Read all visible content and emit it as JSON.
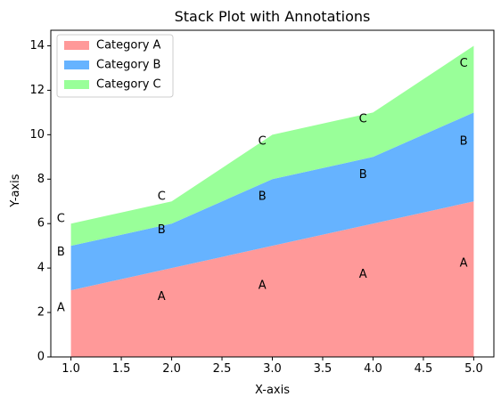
{
  "chart_data": {
    "type": "area",
    "stacked": true,
    "title": "Stack Plot with Annotations",
    "xlabel": "X-axis",
    "ylabel": "Y-axis",
    "x": [
      1,
      2,
      3,
      4,
      5
    ],
    "xlim": [
      0.8,
      5.2
    ],
    "ylim": [
      0,
      14.7
    ],
    "xticks": [
      "1.0",
      "1.5",
      "2.0",
      "2.5",
      "3.0",
      "3.5",
      "4.0",
      "4.5",
      "5.0"
    ],
    "yticks": [
      "0",
      "2",
      "4",
      "6",
      "8",
      "10",
      "12",
      "14"
    ],
    "grid": false,
    "legend_position": "top-left",
    "series": [
      {
        "name": "Category A",
        "values": [
          3,
          4,
          5,
          6,
          7
        ],
        "color": "#ff9999"
      },
      {
        "name": "Category B",
        "values": [
          2,
          2,
          3,
          3,
          4
        ],
        "color": "#66b3ff"
      },
      {
        "name": "Category C",
        "values": [
          1,
          1,
          2,
          2,
          3
        ],
        "color": "#99ff99"
      }
    ],
    "annotations": [
      {
        "text": "A",
        "x": 0.9,
        "y": 2.2
      },
      {
        "text": "A",
        "x": 1.9,
        "y": 2.7
      },
      {
        "text": "A",
        "x": 2.9,
        "y": 3.2
      },
      {
        "text": "A",
        "x": 3.9,
        "y": 3.7
      },
      {
        "text": "A",
        "x": 4.9,
        "y": 4.2
      },
      {
        "text": "B",
        "x": 0.9,
        "y": 4.7
      },
      {
        "text": "B",
        "x": 1.9,
        "y": 5.7
      },
      {
        "text": "B",
        "x": 2.9,
        "y": 7.2
      },
      {
        "text": "B",
        "x": 3.9,
        "y": 8.2
      },
      {
        "text": "B",
        "x": 4.9,
        "y": 9.7
      },
      {
        "text": "C",
        "x": 0.9,
        "y": 6.2
      },
      {
        "text": "C",
        "x": 1.9,
        "y": 7.2
      },
      {
        "text": "C",
        "x": 2.9,
        "y": 9.7
      },
      {
        "text": "C",
        "x": 3.9,
        "y": 10.7
      },
      {
        "text": "C",
        "x": 4.9,
        "y": 13.2
      }
    ]
  }
}
